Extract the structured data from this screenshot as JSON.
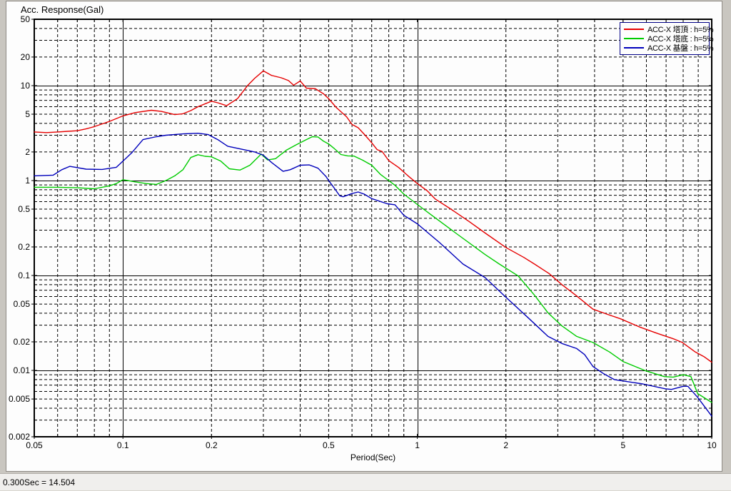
{
  "status_bar": {
    "text": "0.300Sec = 14.504"
  },
  "chart_data": {
    "type": "line",
    "title": "Acc. Response(Gal)",
    "xlabel": "Period(Sec)",
    "ylabel": "Acc. Response(Gal)",
    "xscale": "log",
    "yscale": "log",
    "xlim": [
      0.05,
      10
    ],
    "ylim": [
      0.002,
      50
    ],
    "grid": "dashed minor log gridlines, solid lines at decades",
    "legend_position": "top-right",
    "x_major_gridlines": [
      0.1,
      1
    ],
    "y_major_gridlines": [
      10,
      1,
      0.1,
      0.01
    ],
    "x_ticks": [
      {
        "v": 0.05,
        "label": "0.05"
      },
      {
        "v": 0.1,
        "label": "0.1"
      },
      {
        "v": 0.2,
        "label": "0.2"
      },
      {
        "v": 0.5,
        "label": "0.5"
      },
      {
        "v": 1,
        "label": "1"
      },
      {
        "v": 2,
        "label": "2"
      },
      {
        "v": 5,
        "label": "5"
      },
      {
        "v": 10,
        "label": "10"
      }
    ],
    "y_ticks": [
      {
        "v": 50,
        "label": "50"
      },
      {
        "v": 20,
        "label": "20"
      },
      {
        "v": 10,
        "label": "10"
      },
      {
        "v": 5,
        "label": "5"
      },
      {
        "v": 2,
        "label": "2"
      },
      {
        "v": 1,
        "label": "1"
      },
      {
        "v": 0.5,
        "label": "0.5"
      },
      {
        "v": 0.2,
        "label": "0.2"
      },
      {
        "v": 0.1,
        "label": "0.1"
      },
      {
        "v": 0.05,
        "label": "0.05"
      },
      {
        "v": 0.02,
        "label": "0.02"
      },
      {
        "v": 0.01,
        "label": "0.01"
      },
      {
        "v": 0.005,
        "label": "0.005"
      },
      {
        "v": 0.002,
        "label": "0.002"
      }
    ],
    "series": [
      {
        "name": "ACC-X 塔頂 : h=5%",
        "color": "#e60000",
        "points": [
          [
            0.05,
            3.25
          ],
          [
            0.055,
            3.2
          ],
          [
            0.06,
            3.25
          ],
          [
            0.065,
            3.3
          ],
          [
            0.07,
            3.35
          ],
          [
            0.075,
            3.5
          ],
          [
            0.08,
            3.7
          ],
          [
            0.09,
            4.2
          ],
          [
            0.1,
            4.8
          ],
          [
            0.11,
            5.2
          ],
          [
            0.125,
            5.5
          ],
          [
            0.135,
            5.35
          ],
          [
            0.15,
            4.95
          ],
          [
            0.16,
            5.05
          ],
          [
            0.17,
            5.45
          ],
          [
            0.18,
            6.0
          ],
          [
            0.2,
            6.85
          ],
          [
            0.21,
            6.6
          ],
          [
            0.225,
            6.15
          ],
          [
            0.245,
            7.3
          ],
          [
            0.265,
            10.0
          ],
          [
            0.28,
            11.9
          ],
          [
            0.3,
            14.3
          ],
          [
            0.32,
            12.8
          ],
          [
            0.345,
            12.1
          ],
          [
            0.365,
            11.3
          ],
          [
            0.38,
            10.1
          ],
          [
            0.4,
            11.2
          ],
          [
            0.42,
            9.4
          ],
          [
            0.45,
            9.3
          ],
          [
            0.48,
            8.2
          ],
          [
            0.5,
            7.3
          ],
          [
            0.53,
            5.9
          ],
          [
            0.575,
            4.7
          ],
          [
            0.6,
            3.9
          ],
          [
            0.63,
            3.6
          ],
          [
            0.665,
            3.0
          ],
          [
            0.7,
            2.5
          ],
          [
            0.73,
            2.12
          ],
          [
            0.76,
            2.02
          ],
          [
            0.8,
            1.62
          ],
          [
            0.865,
            1.37
          ],
          [
            0.93,
            1.12
          ],
          [
            1.0,
            0.93
          ],
          [
            1.08,
            0.78
          ],
          [
            1.15,
            0.64
          ],
          [
            1.3,
            0.5
          ],
          [
            1.5,
            0.37
          ],
          [
            1.7,
            0.28
          ],
          [
            2.0,
            0.197
          ],
          [
            2.3,
            0.155
          ],
          [
            2.5,
            0.132
          ],
          [
            2.8,
            0.105
          ],
          [
            3.1,
            0.08
          ],
          [
            3.45,
            0.062
          ],
          [
            3.95,
            0.0442
          ],
          [
            4.4,
            0.0392
          ],
          [
            4.9,
            0.035
          ],
          [
            5.7,
            0.0286
          ],
          [
            6.5,
            0.0247
          ],
          [
            7.45,
            0.0214
          ],
          [
            7.95,
            0.0197
          ],
          [
            8.8,
            0.0156
          ],
          [
            9.4,
            0.014
          ],
          [
            10,
            0.0122
          ]
        ]
      },
      {
        "name": "ACC-X 塔底 : h=5%",
        "color": "#00cc00",
        "points": [
          [
            0.05,
            0.85
          ],
          [
            0.06,
            0.85
          ],
          [
            0.07,
            0.84
          ],
          [
            0.08,
            0.82
          ],
          [
            0.09,
            0.88
          ],
          [
            0.095,
            0.93
          ],
          [
            0.1,
            1.02
          ],
          [
            0.11,
            0.97
          ],
          [
            0.12,
            0.93
          ],
          [
            0.13,
            0.91
          ],
          [
            0.14,
            1.0
          ],
          [
            0.15,
            1.12
          ],
          [
            0.16,
            1.3
          ],
          [
            0.17,
            1.75
          ],
          [
            0.18,
            1.87
          ],
          [
            0.19,
            1.8
          ],
          [
            0.2,
            1.78
          ],
          [
            0.215,
            1.6
          ],
          [
            0.23,
            1.33
          ],
          [
            0.25,
            1.29
          ],
          [
            0.27,
            1.45
          ],
          [
            0.295,
            1.9
          ],
          [
            0.31,
            1.65
          ],
          [
            0.33,
            1.7
          ],
          [
            0.36,
            2.1
          ],
          [
            0.39,
            2.4
          ],
          [
            0.42,
            2.7
          ],
          [
            0.44,
            2.9
          ],
          [
            0.46,
            2.88
          ],
          [
            0.48,
            2.6
          ],
          [
            0.5,
            2.43
          ],
          [
            0.52,
            2.2
          ],
          [
            0.55,
            1.88
          ],
          [
            0.58,
            1.82
          ],
          [
            0.61,
            1.81
          ],
          [
            0.65,
            1.65
          ],
          [
            0.7,
            1.45
          ],
          [
            0.75,
            1.16
          ],
          [
            0.8,
            1.0
          ],
          [
            0.84,
            0.89
          ],
          [
            0.9,
            0.72
          ],
          [
            1.0,
            0.56
          ],
          [
            1.12,
            0.43
          ],
          [
            1.35,
            0.28
          ],
          [
            1.7,
            0.166
          ],
          [
            1.9,
            0.132
          ],
          [
            2.2,
            0.099
          ],
          [
            2.5,
            0.062
          ],
          [
            2.78,
            0.0404
          ],
          [
            3.1,
            0.0294
          ],
          [
            3.48,
            0.0228
          ],
          [
            3.95,
            0.0197
          ],
          [
            4.5,
            0.0156
          ],
          [
            5.0,
            0.0124
          ],
          [
            5.97,
            0.0099
          ],
          [
            6.9,
            0.0086
          ],
          [
            7.4,
            0.0085
          ],
          [
            8.0,
            0.009
          ],
          [
            8.5,
            0.0086
          ],
          [
            8.96,
            0.0057
          ],
          [
            10,
            0.0046
          ]
        ]
      },
      {
        "name": "ACC-X 基盤 : h=5%",
        "color": "#0000bb",
        "points": [
          [
            0.05,
            1.12
          ],
          [
            0.058,
            1.14
          ],
          [
            0.062,
            1.3
          ],
          [
            0.066,
            1.41
          ],
          [
            0.075,
            1.32
          ],
          [
            0.085,
            1.31
          ],
          [
            0.095,
            1.38
          ],
          [
            0.1,
            1.6
          ],
          [
            0.107,
            1.95
          ],
          [
            0.117,
            2.7
          ],
          [
            0.13,
            2.9
          ],
          [
            0.14,
            3.0
          ],
          [
            0.16,
            3.1
          ],
          [
            0.18,
            3.15
          ],
          [
            0.195,
            3.05
          ],
          [
            0.21,
            2.7
          ],
          [
            0.227,
            2.3
          ],
          [
            0.26,
            2.1
          ],
          [
            0.28,
            2.0
          ],
          [
            0.3,
            1.85
          ],
          [
            0.32,
            1.55
          ],
          [
            0.35,
            1.25
          ],
          [
            0.37,
            1.3
          ],
          [
            0.4,
            1.45
          ],
          [
            0.43,
            1.46
          ],
          [
            0.46,
            1.35
          ],
          [
            0.49,
            1.1
          ],
          [
            0.5,
            1.0
          ],
          [
            0.52,
            0.85
          ],
          [
            0.545,
            0.69
          ],
          [
            0.56,
            0.675
          ],
          [
            0.6,
            0.73
          ],
          [
            0.63,
            0.758
          ],
          [
            0.66,
            0.72
          ],
          [
            0.7,
            0.645
          ],
          [
            0.79,
            0.57
          ],
          [
            0.84,
            0.556
          ],
          [
            0.9,
            0.43
          ],
          [
            1.0,
            0.35
          ],
          [
            1.19,
            0.222
          ],
          [
            1.43,
            0.132
          ],
          [
            1.7,
            0.095
          ],
          [
            2.0,
            0.059
          ],
          [
            2.4,
            0.035
          ],
          [
            2.78,
            0.0228
          ],
          [
            3.1,
            0.0192
          ],
          [
            3.48,
            0.017
          ],
          [
            3.7,
            0.0147
          ],
          [
            3.95,
            0.011
          ],
          [
            4.3,
            0.0092
          ],
          [
            4.67,
            0.008
          ],
          [
            5.83,
            0.0072
          ],
          [
            6.96,
            0.0064
          ],
          [
            7.3,
            0.0063
          ],
          [
            8.0,
            0.0068
          ],
          [
            8.3,
            0.0068
          ],
          [
            8.96,
            0.0052
          ],
          [
            10,
            0.0033
          ]
        ]
      }
    ]
  }
}
